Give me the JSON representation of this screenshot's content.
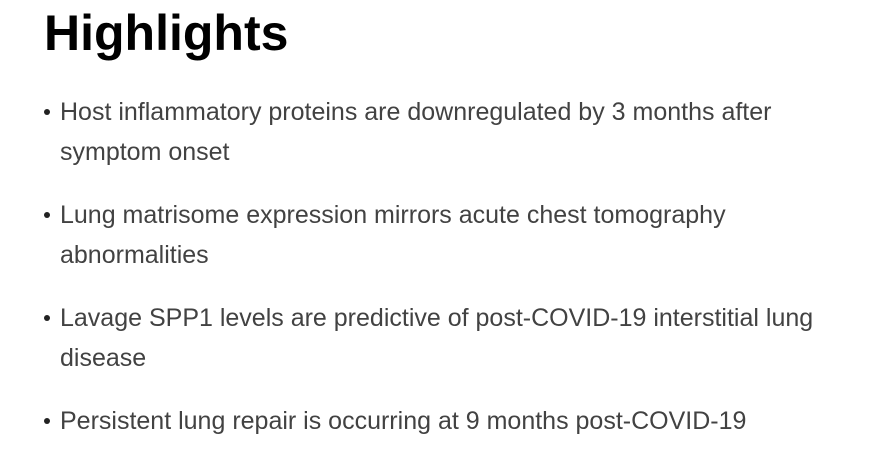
{
  "heading": "Highlights",
  "items": [
    "Host inflammatory proteins are downregulated by 3 months after symptom onset",
    "Lung matrisome expression mirrors acute chest tomography abnormalities",
    "Lavage SPP1 levels are predictive of post-COVID-19 interstitial lung disease",
    "Persistent lung repair is occurring at 9 months post-COVID-19"
  ]
}
